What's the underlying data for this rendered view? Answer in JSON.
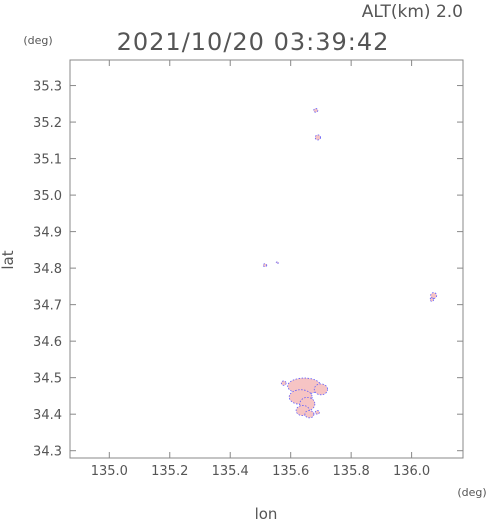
{
  "header": {
    "altitude_label": "ALT(km) 2.0",
    "timestamp": "2021/10/20 03:39:42"
  },
  "chart_data": {
    "type": "scatter",
    "xlabel": "lon",
    "ylabel": "lat",
    "x_unit": "(deg)",
    "y_unit": "(deg)",
    "xlim": [
      134.87,
      136.17
    ],
    "ylim": [
      34.28,
      35.37
    ],
    "x_ticks": [
      135.0,
      135.2,
      135.4,
      135.6,
      135.8,
      136.0
    ],
    "y_ticks": [
      34.3,
      34.4,
      34.5,
      34.6,
      34.7,
      34.8,
      34.9,
      35.0,
      35.1,
      35.2,
      35.3
    ],
    "x_tick_labels": [
      "135.0",
      "135.2",
      "135.4",
      "135.6",
      "135.8",
      "136.0"
    ],
    "y_tick_labels": [
      "34.3",
      "34.4",
      "34.5",
      "34.6",
      "34.7",
      "34.8",
      "34.9",
      "35.0",
      "35.1",
      "35.2",
      "35.3"
    ],
    "grid": false,
    "colors": {
      "axis": "#888888",
      "text": "#555555",
      "echo_fill": "#f6c4c4",
      "echo_outline": "#5a5aff"
    },
    "echoes": [
      {
        "lon": 135.683,
        "lat": 35.232,
        "rx": 0.007,
        "ry": 0.005
      },
      {
        "lon": 135.69,
        "lat": 35.158,
        "rx": 0.009,
        "ry": 0.007
      },
      {
        "lon": 135.515,
        "lat": 34.808,
        "rx": 0.006,
        "ry": 0.004
      },
      {
        "lon": 135.556,
        "lat": 34.815,
        "rx": 0.004,
        "ry": 0.002
      },
      {
        "lon": 136.073,
        "lat": 34.725,
        "rx": 0.01,
        "ry": 0.008
      },
      {
        "lon": 136.067,
        "lat": 34.714,
        "rx": 0.006,
        "ry": 0.005
      },
      {
        "lon": 135.577,
        "lat": 34.485,
        "rx": 0.008,
        "ry": 0.006
      },
      {
        "lon": 135.645,
        "lat": 34.477,
        "rx": 0.055,
        "ry": 0.022
      },
      {
        "lon": 135.7,
        "lat": 34.468,
        "rx": 0.022,
        "ry": 0.015
      },
      {
        "lon": 135.633,
        "lat": 34.447,
        "rx": 0.038,
        "ry": 0.02
      },
      {
        "lon": 135.655,
        "lat": 34.428,
        "rx": 0.025,
        "ry": 0.018
      },
      {
        "lon": 135.64,
        "lat": 34.41,
        "rx": 0.022,
        "ry": 0.014
      },
      {
        "lon": 135.662,
        "lat": 34.4,
        "rx": 0.015,
        "ry": 0.01
      },
      {
        "lon": 135.688,
        "lat": 34.405,
        "rx": 0.007,
        "ry": 0.005
      }
    ]
  }
}
